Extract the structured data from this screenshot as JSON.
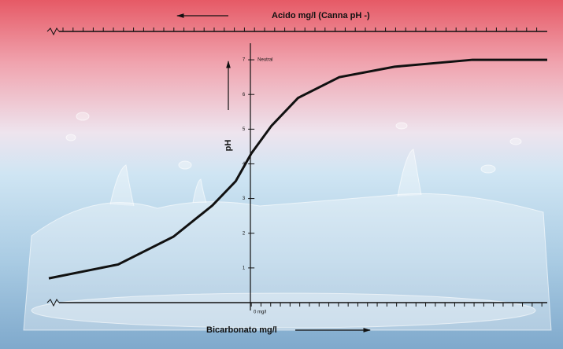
{
  "chart_data": {
    "type": "line",
    "top_axis_label": "Acido mg/l (Canna pH -)",
    "x_label": "Bicarbonato mg/l",
    "y_label": "pH",
    "y_annotation": "Neutral",
    "origin_label": "0 mg/l",
    "x": [
      -26,
      -17.1,
      -10,
      -5,
      -2,
      0,
      2.6,
      6,
      11.3,
      18.4,
      28.4,
      38
    ],
    "series": [
      {
        "color": "#111111",
        "values": [
          0.7,
          1.1,
          1.9,
          2.8,
          3.5,
          4.3,
          5.1,
          5.9,
          6.5,
          6.8,
          7.0,
          7.0
        ]
      }
    ],
    "xlim": [
      -26,
      38
    ],
    "ylim": [
      0,
      7.5
    ],
    "yticks": [
      1,
      2,
      3,
      4,
      5,
      6,
      7
    ]
  }
}
